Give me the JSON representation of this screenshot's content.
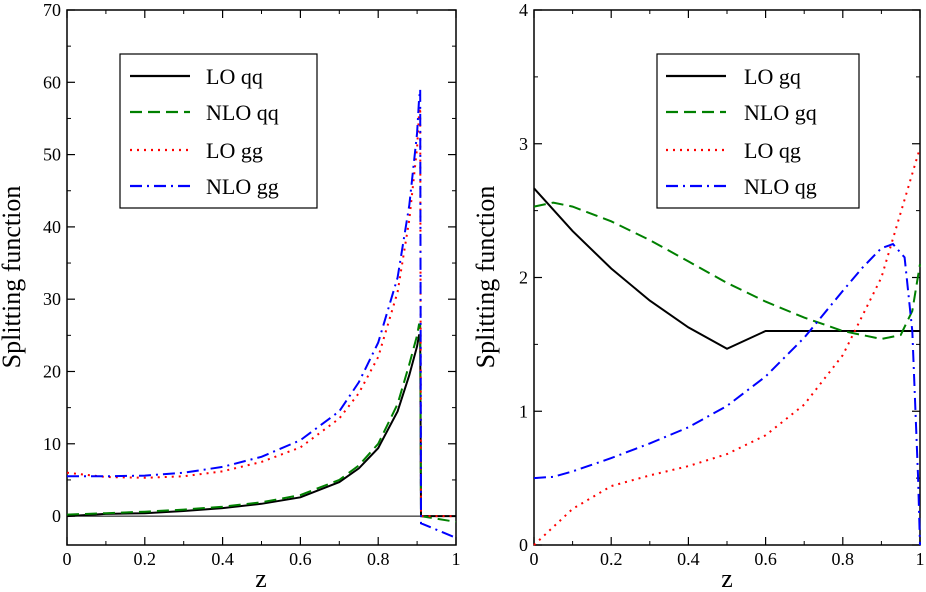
{
  "chart_data": [
    {
      "type": "line",
      "xlabel": "z",
      "ylabel": "Splitting function",
      "xlim": [
        0,
        1
      ],
      "ylim": [
        -4,
        70
      ],
      "xticks": [
        "0",
        "0.2",
        "0.4",
        "0.6",
        "0.8",
        "1"
      ],
      "yticks": [
        "0",
        "10",
        "20",
        "30",
        "40",
        "50",
        "60",
        "70"
      ],
      "series": [
        {
          "name": "LO qq",
          "color": "#000000",
          "dash": "solid",
          "x": [
            0,
            0.1,
            0.2,
            0.3,
            0.4,
            0.5,
            0.6,
            0.7,
            0.75,
            0.8,
            0.85,
            0.88,
            0.9,
            0.905,
            0.908,
            0.91,
            1.0
          ],
          "y": [
            0,
            0.3,
            0.4,
            0.7,
            1.1,
            1.7,
            2.6,
            4.7,
            6.6,
            9.4,
            14.5,
            19.5,
            23.5,
            25.0,
            25.0,
            0,
            0
          ]
        },
        {
          "name": "NLO qq",
          "color": "#008000",
          "dash": "dashed",
          "x": [
            0,
            0.1,
            0.2,
            0.3,
            0.4,
            0.5,
            0.6,
            0.7,
            0.75,
            0.8,
            0.85,
            0.88,
            0.9,
            0.905,
            0.908,
            0.91,
            1.0
          ],
          "y": [
            0.2,
            0.4,
            0.6,
            0.9,
            1.3,
            1.9,
            2.9,
            5.0,
            7.0,
            10.0,
            15.5,
            21.0,
            25.0,
            26.5,
            26.5,
            0,
            -0.8
          ]
        },
        {
          "name": "LO gg",
          "color": "#ff0000",
          "dash": "dotted",
          "x": [
            0,
            0.1,
            0.2,
            0.3,
            0.4,
            0.5,
            0.6,
            0.7,
            0.75,
            0.8,
            0.85,
            0.88,
            0.9,
            0.905,
            0.908,
            0.91,
            1.0
          ],
          "y": [
            6.0,
            5.4,
            5.3,
            5.5,
            6.2,
            7.5,
            9.5,
            13.5,
            17.0,
            22.0,
            31.0,
            41.0,
            51.0,
            55.5,
            56.5,
            0,
            0
          ]
        },
        {
          "name": "NLO gg",
          "color": "#0000ff",
          "dash": "dashdot",
          "x": [
            0,
            0.1,
            0.2,
            0.3,
            0.4,
            0.5,
            0.6,
            0.7,
            0.75,
            0.8,
            0.85,
            0.88,
            0.9,
            0.905,
            0.908,
            0.91,
            1.0
          ],
          "y": [
            5.5,
            5.5,
            5.6,
            6.0,
            6.8,
            8.2,
            10.5,
            14.5,
            18.5,
            24.0,
            33.0,
            43.0,
            53.0,
            57.5,
            59.0,
            -1.0,
            -3.0
          ]
        }
      ]
    },
    {
      "type": "line",
      "xlabel": "z",
      "ylabel": "Splitting function",
      "xlim": [
        0,
        1
      ],
      "ylim": [
        0,
        4
      ],
      "xticks": [
        "0",
        "0.2",
        "0.4",
        "0.6",
        "0.8",
        "1"
      ],
      "yticks": [
        "0",
        "1",
        "2",
        "3",
        "4"
      ],
      "series": [
        {
          "name": "LO gq",
          "color": "#000000",
          "dash": "solid",
          "x": [
            0,
            0.1,
            0.2,
            0.3,
            0.4,
            0.5,
            0.6,
            0.7,
            0.8,
            0.9,
            1.0
          ],
          "y": [
            2.667,
            2.347,
            2.067,
            1.827,
            1.627,
            1.467,
            1.6,
            1.6,
            1.6,
            1.6,
            1.6
          ]
        },
        {
          "name": "NLO gq",
          "color": "#008000",
          "dash": "dashed",
          "x": [
            0,
            0.05,
            0.1,
            0.2,
            0.3,
            0.4,
            0.5,
            0.6,
            0.7,
            0.8,
            0.9,
            0.95,
            0.98,
            1.0
          ],
          "y": [
            2.53,
            2.56,
            2.53,
            2.42,
            2.28,
            2.12,
            1.96,
            1.82,
            1.7,
            1.6,
            1.54,
            1.57,
            1.75,
            2.1
          ]
        },
        {
          "name": "LO qg",
          "color": "#ff0000",
          "dash": "dotted",
          "x": [
            0,
            0.1,
            0.2,
            0.3,
            0.4,
            0.5,
            0.6,
            0.7,
            0.8,
            0.9,
            1.0
          ],
          "y": [
            0.0,
            0.27,
            0.44,
            0.52,
            0.59,
            0.68,
            0.82,
            1.05,
            1.42,
            2.0,
            2.97
          ]
        },
        {
          "name": "NLO qg",
          "color": "#0000ff",
          "dash": "dashdot",
          "x": [
            0,
            0.05,
            0.1,
            0.2,
            0.3,
            0.4,
            0.5,
            0.6,
            0.7,
            0.8,
            0.85,
            0.9,
            0.93,
            0.96,
            0.98,
            0.995,
            1.0
          ],
          "y": [
            0.5,
            0.51,
            0.55,
            0.65,
            0.76,
            0.88,
            1.04,
            1.26,
            1.55,
            1.9,
            2.07,
            2.22,
            2.25,
            2.15,
            1.6,
            0.5,
            0.0
          ]
        }
      ]
    }
  ]
}
